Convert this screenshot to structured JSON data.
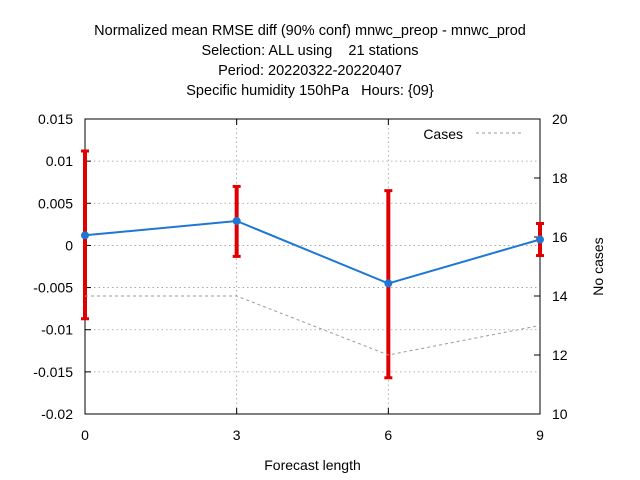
{
  "chart_data": {
    "type": "line",
    "title_lines": [
      "Normalized mean RMSE diff (90% conf) mnwc_preop - mnwc_prod",
      "Selection: ALL using    21 stations",
      "Period: 20220322-20220407",
      "Specific humidity 150hPa   Hours: {09}"
    ],
    "xlabel": "Forecast length",
    "ylabel": "",
    "y2label": "No cases",
    "xlim": [
      0,
      9
    ],
    "ylim": [
      -0.02,
      0.015
    ],
    "y2lim": [
      10,
      20
    ],
    "x_ticks": [
      "0",
      "3",
      "6",
      "9"
    ],
    "y_ticks": [
      "0.015",
      "0.01",
      "0.005",
      "0",
      "-0.005",
      "-0.01",
      "-0.015",
      "-0.02"
    ],
    "y2_ticks": [
      "20",
      "18",
      "16",
      "14",
      "12",
      "10"
    ],
    "grid": true,
    "legend_position": "top-right",
    "series": [
      {
        "name": "",
        "axis": "left",
        "color": "#1f77d4",
        "x": [
          0,
          3,
          6,
          9
        ],
        "y": [
          0.0012,
          0.0029,
          -0.0045,
          0.0007
        ],
        "err_low": [
          -0.0087,
          -0.0013,
          -0.0157,
          -0.0012
        ],
        "err_high": [
          0.0112,
          0.007,
          0.0065,
          0.0026
        ],
        "err_color": "#e00000"
      },
      {
        "name": "Cases",
        "axis": "right",
        "color": "#999999",
        "dashed": true,
        "x": [
          0,
          3,
          6,
          9
        ],
        "y": [
          14,
          14,
          12,
          13
        ]
      }
    ]
  }
}
